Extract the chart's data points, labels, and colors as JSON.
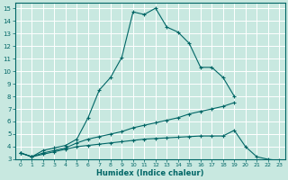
{
  "xlabel": "Humidex (Indice chaleur)",
  "bg_color": "#c8e8e0",
  "line_color": "#006666",
  "grid_color": "#ffffff",
  "xlim": [
    -0.5,
    23.5
  ],
  "ylim": [
    3,
    15.4
  ],
  "xticks": [
    0,
    1,
    2,
    3,
    4,
    5,
    6,
    7,
    8,
    9,
    10,
    11,
    12,
    13,
    14,
    15,
    16,
    17,
    18,
    19,
    20,
    21,
    22,
    23
  ],
  "yticks": [
    3,
    4,
    5,
    6,
    7,
    8,
    9,
    10,
    11,
    12,
    13,
    14,
    15
  ],
  "line1_x": [
    0,
    1,
    2,
    3,
    4,
    5,
    6,
    7,
    8,
    9,
    10,
    11,
    12,
    13,
    14,
    15,
    16,
    17,
    18,
    19
  ],
  "line1_y": [
    3.5,
    3.2,
    3.7,
    3.9,
    4.1,
    4.6,
    6.3,
    8.5,
    9.5,
    11.1,
    14.7,
    14.5,
    15.0,
    13.5,
    13.1,
    12.2,
    10.3,
    10.3,
    9.5,
    8.0
  ],
  "line2_x": [
    0,
    1,
    2,
    3,
    4,
    5,
    6,
    7,
    8,
    9,
    10,
    11,
    12,
    13,
    14,
    15,
    16,
    17,
    18,
    19,
    20,
    21,
    22,
    23
  ],
  "line2_y": [
    3.5,
    3.2,
    3.5,
    3.7,
    3.9,
    4.3,
    4.6,
    4.8,
    5.0,
    5.2,
    5.5,
    5.7,
    5.9,
    6.1,
    6.3,
    6.6,
    6.8,
    7.0,
    7.2,
    7.5,
    null,
    null,
    null,
    null
  ],
  "line3_x": [
    0,
    1,
    2,
    3,
    4,
    5,
    6,
    7,
    8,
    9,
    10,
    11,
    12,
    13,
    14,
    15,
    16,
    17,
    18,
    19,
    20,
    21,
    22,
    23
  ],
  "line3_y": [
    3.5,
    3.2,
    3.4,
    3.6,
    3.8,
    4.0,
    4.1,
    4.2,
    4.3,
    4.4,
    4.5,
    4.6,
    4.65,
    4.7,
    4.75,
    4.8,
    4.85,
    4.85,
    4.85,
    5.3,
    4.0,
    3.2,
    3.0,
    2.9
  ]
}
